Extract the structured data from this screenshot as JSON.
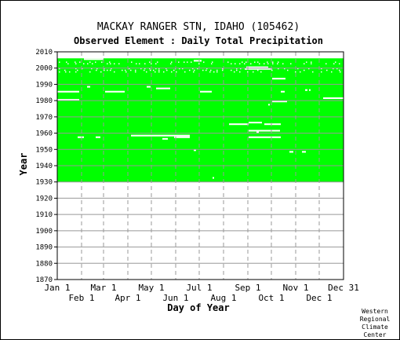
{
  "chart_data": {
    "type": "heatmap",
    "title": "MACKAY RANGER STN, IDAHO   (105462)",
    "subtitle": "Observed Element : Daily Total Precipitation",
    "xlabel": "Day of Year",
    "ylabel": "Year",
    "ylim": [
      1870,
      2010
    ],
    "yticks": [
      1870,
      1880,
      1890,
      1900,
      1910,
      1920,
      1930,
      1940,
      1950,
      1960,
      1970,
      1980,
      1990,
      2000,
      2010
    ],
    "xlim": [
      1,
      366
    ],
    "xticks_top_row": [
      {
        "label": "Jan 1",
        "day": 1
      },
      {
        "label": "Mar 1",
        "day": 60
      },
      {
        "label": "May 1",
        "day": 121
      },
      {
        "label": "Jul 1",
        "day": 182
      },
      {
        "label": "Sep 1",
        "day": 244
      },
      {
        "label": "Nov 1",
        "day": 305
      },
      {
        "label": "Dec 31",
        "day": 366
      }
    ],
    "xticks_bottom_row": [
      {
        "label": "Feb 1",
        "day": 32
      },
      {
        "label": "Apr 1",
        "day": 91
      },
      {
        "label": "Jun 1",
        "day": 152
      },
      {
        "label": "Aug 1",
        "day": 213
      },
      {
        "label": "Oct 1",
        "day": 274
      },
      {
        "label": "Dec 1",
        "day": 335
      }
    ],
    "grid": true,
    "colors": {
      "observed": "#00ff00",
      "missing": "#ffffff",
      "grid": "#999999",
      "plot_border": "#000000"
    },
    "observed_period": {
      "start_year": 1930,
      "end_year": 2005,
      "start_day": 1,
      "end_day": 366
    },
    "missing_segments": [
      {
        "year": 1985,
        "start_day": 1,
        "end_day": 29
      },
      {
        "year": 1980,
        "start_day": 1,
        "end_day": 29
      },
      {
        "year": 1957,
        "start_day": 27,
        "end_day": 35
      },
      {
        "year": 1957,
        "start_day": 50,
        "end_day": 56
      },
      {
        "year": 1985,
        "start_day": 62,
        "end_day": 87
      },
      {
        "year": 1988,
        "start_day": 39,
        "end_day": 43
      },
      {
        "year": 1958,
        "start_day": 95,
        "end_day": 150
      },
      {
        "year": 1956,
        "start_day": 135,
        "end_day": 142
      },
      {
        "year": 1958,
        "start_day": 150,
        "end_day": 170
      },
      {
        "year": 1957,
        "start_day": 150,
        "end_day": 170
      },
      {
        "year": 1949,
        "start_day": 175,
        "end_day": 178
      },
      {
        "year": 1985,
        "start_day": 183,
        "end_day": 198
      },
      {
        "year": 1988,
        "start_day": 115,
        "end_day": 120
      },
      {
        "year": 1987,
        "start_day": 127,
        "end_day": 145
      },
      {
        "year": 1965,
        "start_day": 220,
        "end_day": 245
      },
      {
        "year": 1966,
        "start_day": 245,
        "end_day": 262
      },
      {
        "year": 1965,
        "start_day": 265,
        "end_day": 286
      },
      {
        "year": 1961,
        "start_day": 245,
        "end_day": 285
      },
      {
        "year": 1960,
        "start_day": 255,
        "end_day": 258
      },
      {
        "year": 1957,
        "start_day": 245,
        "end_day": 286
      },
      {
        "year": 1948,
        "start_day": 297,
        "end_day": 302
      },
      {
        "year": 1948,
        "start_day": 313,
        "end_day": 318
      },
      {
        "year": 1932,
        "start_day": 199,
        "end_day": 201
      },
      {
        "year": 1993,
        "start_day": 275,
        "end_day": 292
      },
      {
        "year": 1979,
        "start_day": 275,
        "end_day": 294
      },
      {
        "year": 1985,
        "start_day": 286,
        "end_day": 291
      },
      {
        "year": 1977,
        "start_day": 270,
        "end_day": 272
      },
      {
        "year": 1981,
        "start_day": 340,
        "end_day": 366
      },
      {
        "year": 1986,
        "start_day": 317,
        "end_day": 320
      },
      {
        "year": 2005,
        "start_day": 35,
        "end_day": 60
      },
      {
        "year": 2004,
        "start_day": 175,
        "end_day": 185
      },
      {
        "year": 2000,
        "start_day": 242,
        "end_day": 270
      },
      {
        "year": 1999,
        "start_day": 240,
        "end_day": 275
      },
      {
        "year": 1986,
        "start_day": 322,
        "end_day": 324
      }
    ],
    "sparse_missing_years": [
      1997,
      1998,
      1999,
      2002,
      2003
    ],
    "credit": [
      "Western",
      "Regional",
      "Climate",
      "Center"
    ]
  }
}
